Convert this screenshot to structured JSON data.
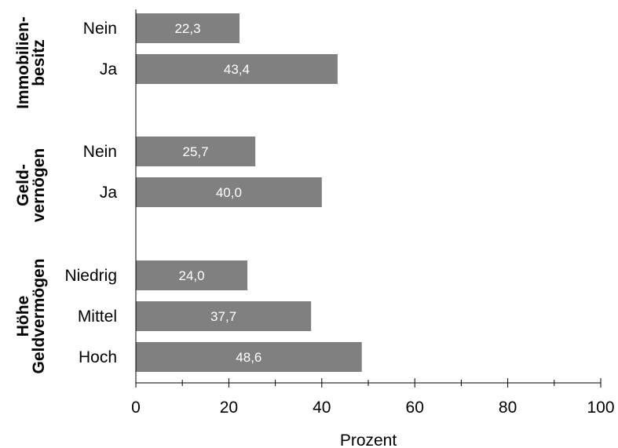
{
  "chart_data": {
    "type": "bar",
    "orientation": "horizontal",
    "xlabel": "Prozent",
    "xlim": [
      0,
      100
    ],
    "xticks": [
      "0",
      "20",
      "40",
      "60",
      "80",
      "100"
    ],
    "bar_color": "#808080",
    "groups": [
      {
        "label_lines": [
          "Immobilien-",
          "besitz"
        ],
        "categories": [
          "Nein",
          "Ja"
        ],
        "values": [
          22.3,
          43.4
        ],
        "value_labels": [
          "22,3",
          "43,4"
        ]
      },
      {
        "label_lines": [
          "Geld-",
          "vernögen"
        ],
        "categories": [
          "Nein",
          "Ja"
        ],
        "values": [
          25.7,
          40.0
        ],
        "value_labels": [
          "25,7",
          "40,0"
        ]
      },
      {
        "label_lines": [
          "Höhe",
          "Geldvermögen"
        ],
        "categories": [
          "Niedrig",
          "Mittel",
          "Hoch"
        ],
        "values": [
          24.0,
          37.7,
          48.6
        ],
        "value_labels": [
          "24,0",
          "37,7",
          "48,6"
        ]
      }
    ]
  }
}
